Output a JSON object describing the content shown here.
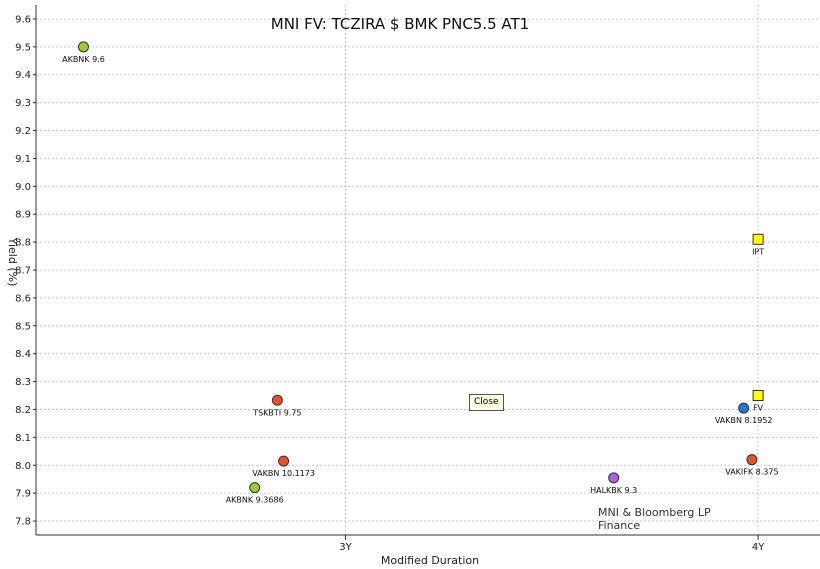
{
  "chart_data": {
    "type": "scatter",
    "title": "MNI FV: TCZIRA $ BMK PNC5.5 AT1",
    "xlabel": "Modified Duration",
    "ylabel": "Yield (%)",
    "ylim": [
      7.75,
      9.65
    ],
    "xlim": [
      2.25,
      4.15
    ],
    "x_ticks": [
      {
        "value": 3,
        "label": "3Y"
      },
      {
        "value": 4,
        "label": "4Y"
      }
    ],
    "y_ticks": [
      7.8,
      7.9,
      8.0,
      8.1,
      8.2,
      8.3,
      8.4,
      8.5,
      8.6,
      8.7,
      8.8,
      8.9,
      9.0,
      9.1,
      9.2,
      9.3,
      9.4,
      9.5,
      9.6
    ],
    "grid": true,
    "points": [
      {
        "label": "AKBNK 9.6",
        "x": 2.365,
        "y": 9.5,
        "color": "#9acd32",
        "shape": "circle"
      },
      {
        "label": "TSKBTI 9.75",
        "x": 2.835,
        "y": 8.233,
        "color": "#e8512a",
        "shape": "circle"
      },
      {
        "label": "VAKBN 10.1173",
        "x": 2.85,
        "y": 8.015,
        "color": "#e8512a",
        "shape": "circle"
      },
      {
        "label": "AKBNK 9.3686",
        "x": 2.78,
        "y": 7.92,
        "color": "#9acd32",
        "shape": "circle"
      },
      {
        "label": "HALKBK 9.3",
        "x": 3.65,
        "y": 7.955,
        "color": "#b45fe0",
        "shape": "circle"
      },
      {
        "label": "IPT",
        "x": 4.0,
        "y": 8.81,
        "color": "#ffff00",
        "shape": "square"
      },
      {
        "label": "FV",
        "x": 4.0,
        "y": 8.25,
        "color": "#ffff00",
        "shape": "square"
      },
      {
        "label": "VAKBN 8.1952",
        "x": 3.965,
        "y": 8.205,
        "color": "#2874d1",
        "shape": "circle"
      },
      {
        "label": "VAKIFK 8.375",
        "x": 3.985,
        "y": 8.02,
        "color": "#e8512a",
        "shape": "circle"
      }
    ]
  },
  "close_label": "Close",
  "credit": {
    "line1": "MNI & Bloomberg LP",
    "line2": "Finance"
  }
}
